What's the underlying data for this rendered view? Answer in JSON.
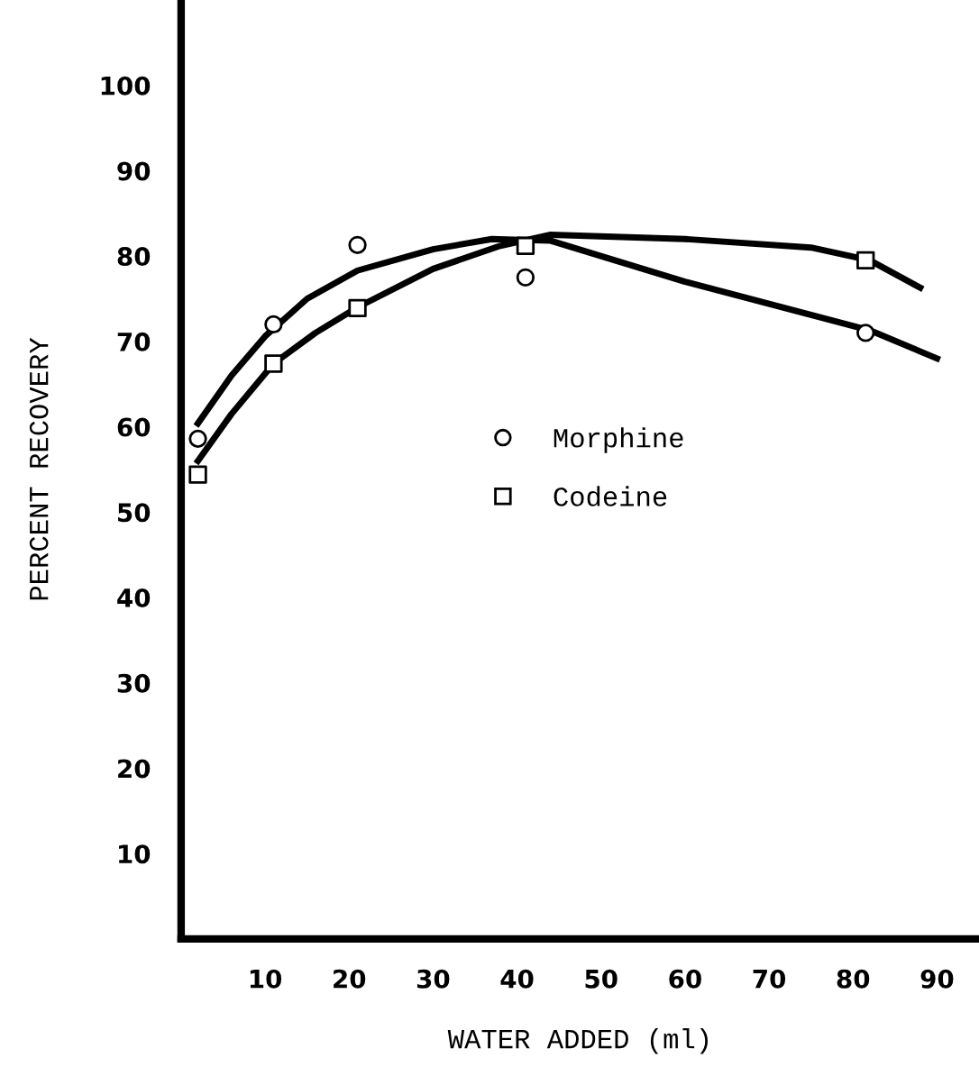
{
  "chart_data": {
    "type": "scatter",
    "xlabel": "WATER ADDED (ml)",
    "ylabel": "PERCENT RECOVERY",
    "xlim": [
      0,
      95
    ],
    "ylim": [
      0,
      110
    ],
    "xticks": [
      10,
      20,
      30,
      40,
      50,
      60,
      70,
      80,
      90
    ],
    "yticks": [
      10,
      20,
      30,
      40,
      50,
      60,
      70,
      80,
      90,
      100
    ],
    "grid": false,
    "legend": "center",
    "series": [
      {
        "name": "Morphine",
        "marker": "circle",
        "color": "#000000",
        "x": [
          2,
          11,
          21,
          41,
          81.5
        ],
        "values": [
          58.6,
          72,
          81.3,
          77.5,
          71
        ]
      },
      {
        "name": "Codeine",
        "marker": "square",
        "color": "#000000",
        "x": [
          2,
          11,
          21,
          41,
          81.5
        ],
        "values": [
          54.4,
          67.4,
          73.9,
          81.2,
          79.5
        ]
      },
      {
        "type": "line",
        "color": "#000000",
        "line_style": "solid",
        "x": [
          2,
          6,
          10,
          15,
          21,
          30,
          37,
          44,
          60,
          82,
          90
        ],
        "values": [
          60.4,
          66,
          70.6,
          75,
          78.3,
          80.8,
          82,
          81.8,
          77,
          71.3,
          68
        ]
      },
      {
        "type": "line",
        "color": "#000000",
        "line_style": "solid",
        "x": [
          2,
          6,
          11,
          16,
          21,
          30,
          38,
          44,
          60,
          75,
          82,
          88
        ],
        "values": [
          56,
          61.5,
          67.4,
          71,
          74,
          78.5,
          81.2,
          82.5,
          82,
          81,
          79.5,
          76.3
        ]
      }
    ]
  }
}
